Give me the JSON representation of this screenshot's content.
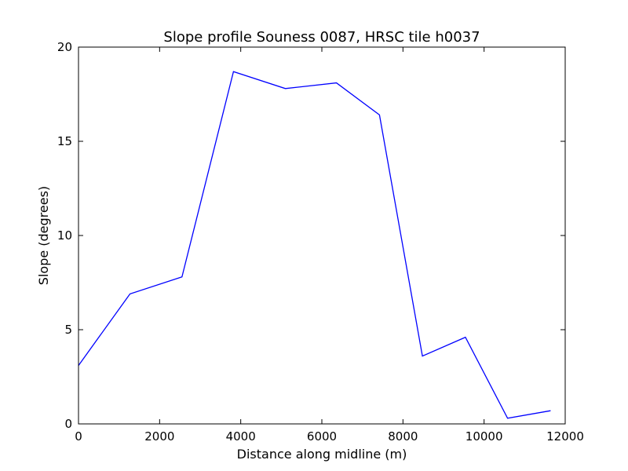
{
  "chart_data": {
    "type": "line",
    "title": "Slope profile Souness 0087, HRSC tile h0037",
    "xlabel": "Distance along midline (m)",
    "ylabel": "Slope (degrees)",
    "xlim": [
      0,
      12000
    ],
    "ylim": [
      0,
      20
    ],
    "xticks": [
      0,
      2000,
      4000,
      6000,
      8000,
      10000,
      12000
    ],
    "yticks": [
      0,
      5,
      10,
      15,
      20
    ],
    "grid": false,
    "series": [
      {
        "color": "#0000ff",
        "x": [
          0,
          1270,
          2550,
          3820,
          5100,
          6360,
          7420,
          8480,
          9540,
          10580,
          11640
        ],
        "y": [
          3.1,
          6.9,
          7.8,
          18.7,
          17.8,
          18.1,
          16.4,
          3.6,
          4.6,
          0.3,
          0.7
        ]
      }
    ]
  }
}
